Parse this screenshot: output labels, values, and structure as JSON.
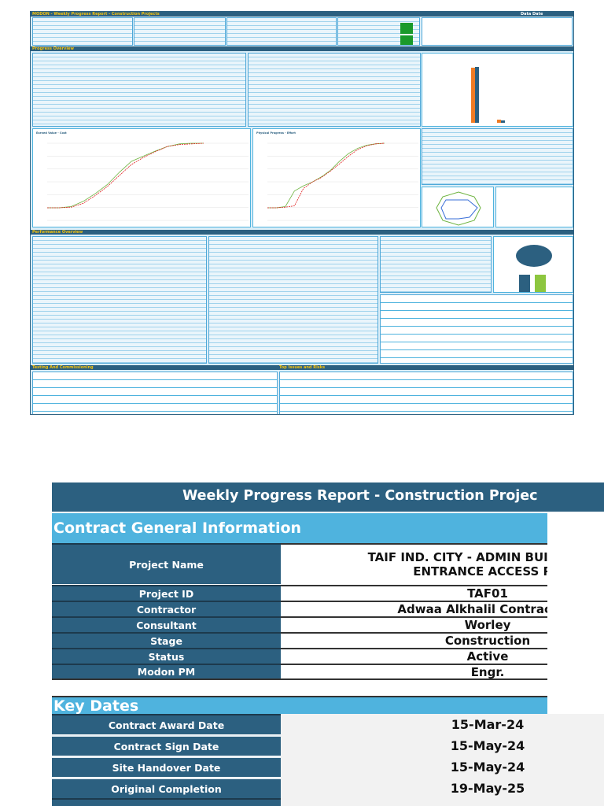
{
  "thumbnail": {
    "title": "MODON - Weekly Progress Report - Construction Projects",
    "data_date_label": "Data Date",
    "sections": {
      "progress_overview": "Progress Overview",
      "performance_overview": "Performance Overview",
      "testing": "Testing And Commissioning",
      "issues": "Top Issues and Risks"
    },
    "charts": {
      "earned_value_title": "Earned Value - Cost",
      "physical_progress_title": "Physical Progress - Effort",
      "baseline": [
        0,
        0,
        2,
        10,
        22,
        36,
        55,
        72,
        80,
        88,
        95,
        99,
        100,
        100
      ],
      "forecast": [
        0,
        0,
        1,
        7,
        19,
        33,
        50,
        67,
        78,
        87,
        95,
        98,
        99,
        100
      ],
      "baseline2": [
        0,
        0,
        2,
        26,
        34,
        40,
        48,
        58,
        72,
        84,
        92,
        97,
        99,
        100
      ],
      "forecast2": [
        0,
        0,
        1,
        3,
        30,
        40,
        47,
        57,
        68,
        80,
        90,
        96,
        99,
        100
      ]
    },
    "colors": {
      "dark": "#2c6080",
      "light": "#4fb3de",
      "yellow": "#f4c20d",
      "green": "#6db33f",
      "red": "#e02020",
      "orange": "#f07c24"
    }
  },
  "report": {
    "title": "Weekly Progress Report - Construction Projec",
    "general": {
      "heading": "Contract General Information",
      "rows": [
        {
          "label": "Project Name",
          "value": "TAIF IND. CITY - ADMIN BUILDING, GATE & ENTRANCE ACCESS ROAD",
          "line1": "TAIF IND. CITY - ADMIN BUILDING, G",
          "line2": "ENTRANCE ACCESS RO"
        },
        {
          "label": "Project ID",
          "value": "TAF01"
        },
        {
          "label": "Contractor",
          "value": "Adwaa Alkhalil Contracting"
        },
        {
          "label": "Consultant",
          "value": "Worley"
        },
        {
          "label": "Stage",
          "value": "Construction"
        },
        {
          "label": "Status",
          "value": "Active"
        },
        {
          "label": "Modon PM",
          "value": "Engr."
        }
      ]
    },
    "key_dates": {
      "heading": "Key Dates",
      "rows": [
        {
          "label": "Contract Award Date",
          "value": "15-Mar-24"
        },
        {
          "label": "Contract Sign Date",
          "value": "15-May-24"
        },
        {
          "label": "Site Handover Date",
          "value": "15-May-24"
        },
        {
          "label": "Original Completion",
          "value": "19-May-25"
        }
      ]
    }
  }
}
